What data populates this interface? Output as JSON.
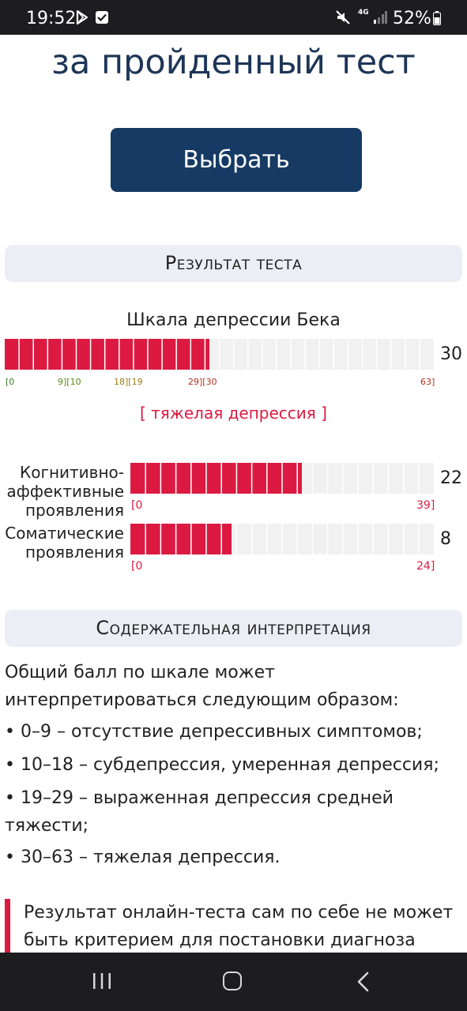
{
  "status_bar": {
    "time": "19:52",
    "network": "4G",
    "battery": "52%",
    "icons": [
      "play-store-icon",
      "checkbox-icon",
      "mute-icon",
      "signal-icon",
      "battery-icon"
    ]
  },
  "hero": {
    "title": "за пройденный тест",
    "button_label": "Выбрать"
  },
  "result": {
    "header": "Результат теста",
    "scale_title": "Шкала депрессии Бека",
    "main_bar": {
      "value": 30,
      "max": 63,
      "value_label": "30",
      "ticks": [
        {
          "label": "[0",
          "color": "#3a7d1f"
        },
        {
          "label": "9][10",
          "color": "#5a8a10"
        },
        {
          "label": "18][19",
          "color": "#9a7a10"
        },
        {
          "label": "29][30",
          "color": "#b5301f"
        },
        {
          "label": "63]",
          "color": "#b5301f"
        }
      ],
      "severity": "[ тяжелая депрессия ]"
    },
    "subscales": [
      {
        "label": "Когнитивно-аффективные проявления",
        "label_lines": [
          "Когнитивно-",
          "аффективные",
          "проявления"
        ],
        "value": 22,
        "value_label": "22",
        "max": 39,
        "min_label": "[0",
        "max_label": "39]"
      },
      {
        "label": "Соматические проявления",
        "label_lines": [
          "Соматические",
          "проявления"
        ],
        "value": 8,
        "value_label": "8",
        "max": 24,
        "min_label": "[0",
        "max_label": "24]"
      }
    ],
    "accent_color": "#dc1a41"
  },
  "interpretation": {
    "header": "Содержательная интерпретация",
    "intro": "Общий балл по шкале может интерпретироваться следующим образом:",
    "items": [
      "• 0–9 – отсутствие депрессивных симптомов;",
      "• 10–18 – субдепрессия, умеренная депрессия;",
      "• 19–29 – выраженная депрессия средней тяжести;",
      "• 30–63 – тяжелая депрессия."
    ],
    "warning": "Результат онлайн-теста сам по себе не может быть критерием для постановки диагноза"
  },
  "nav_bar": {
    "icons": [
      "recent-apps-icon",
      "home-icon",
      "back-icon"
    ]
  }
}
